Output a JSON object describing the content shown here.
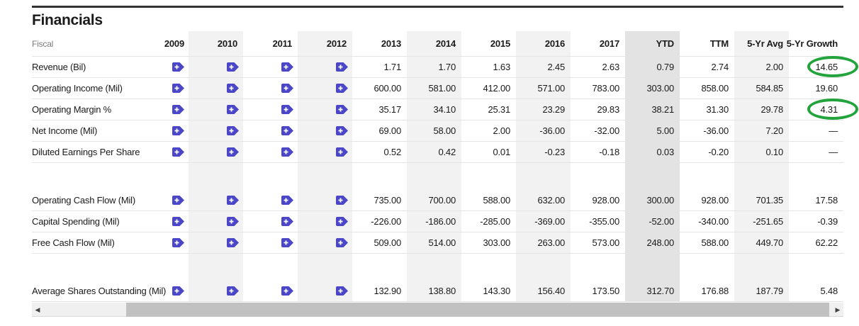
{
  "title": "Financials",
  "table": {
    "fiscal_label": "Fiscal",
    "columns": [
      "2009",
      "2010",
      "2011",
      "2012",
      "2013",
      "2014",
      "2015",
      "2016",
      "2017",
      "YTD",
      "TTM",
      "5-Yr Avg",
      "5-Yr Growth"
    ],
    "icon_columns": [
      "2009",
      "2010",
      "2011",
      "2012"
    ],
    "striped_columns": [
      "2010",
      "2012",
      "2014",
      "2016",
      "5-Yr Avg"
    ],
    "highlighted_column": "YTD",
    "rows": [
      {
        "label": "Revenue (Bil)",
        "values": [
          "1.71",
          "1.70",
          "1.63",
          "2.45",
          "2.63",
          "0.79",
          "2.74",
          "2.00",
          "14.65"
        ],
        "circled": true
      },
      {
        "label": "Operating Income (Mil)",
        "values": [
          "600.00",
          "581.00",
          "412.00",
          "571.00",
          "783.00",
          "303.00",
          "858.00",
          "584.85",
          "19.60"
        ],
        "circled": false
      },
      {
        "label": "Operating Margin %",
        "values": [
          "35.17",
          "34.10",
          "25.31",
          "23.29",
          "29.83",
          "38.21",
          "31.30",
          "29.78",
          "4.31"
        ],
        "circled": true
      },
      {
        "label": "Net Income (Mil)",
        "values": [
          "69.00",
          "58.00",
          "2.00",
          "-36.00",
          "-32.00",
          "5.00",
          "-36.00",
          "7.20",
          "—"
        ],
        "circled": false
      },
      {
        "label": "Diluted Earnings Per Share",
        "values": [
          "0.52",
          "0.42",
          "0.01",
          "-0.23",
          "-0.18",
          "0.03",
          "-0.20",
          "0.10",
          "—"
        ],
        "circled": false
      },
      {
        "spacer": true
      },
      {
        "label": "Operating Cash Flow (Mil)",
        "values": [
          "735.00",
          "700.00",
          "588.00",
          "632.00",
          "928.00",
          "300.00",
          "928.00",
          "701.35",
          "17.58"
        ],
        "circled": false
      },
      {
        "label": "Capital Spending (Mil)",
        "values": [
          "-226.00",
          "-186.00",
          "-285.00",
          "-369.00",
          "-355.00",
          "-52.00",
          "-340.00",
          "-251.65",
          "-0.39"
        ],
        "circled": false
      },
      {
        "label": "Free Cash Flow (Mil)",
        "values": [
          "509.00",
          "514.00",
          "303.00",
          "263.00",
          "573.00",
          "248.00",
          "588.00",
          "449.70",
          "62.22"
        ],
        "circled": false
      },
      {
        "spacer": true
      },
      {
        "label": "Average Shares Outstanding (Mil)",
        "values": [
          "132.90",
          "138.80",
          "143.30",
          "156.40",
          "173.50",
          "312.70",
          "176.88",
          "187.79",
          "5.48"
        ],
        "circled": false
      }
    ]
  },
  "icons": {
    "plus_tag_icon": "plus-tag",
    "scroll_left_arrow": "◀",
    "scroll_right_arrow": "▶"
  },
  "colors": {
    "accent_indigo": "#4b46c8",
    "annotation_green": "#22a33c",
    "column_stripe": "#f2f2f2",
    "ytd_stripe": "#e3e3e3",
    "row_border": "#e4e4e4",
    "scrollbar_track": "#f0f0f0",
    "scrollbar_thumb": "#c1c1c1",
    "top_rule": "#333333"
  }
}
